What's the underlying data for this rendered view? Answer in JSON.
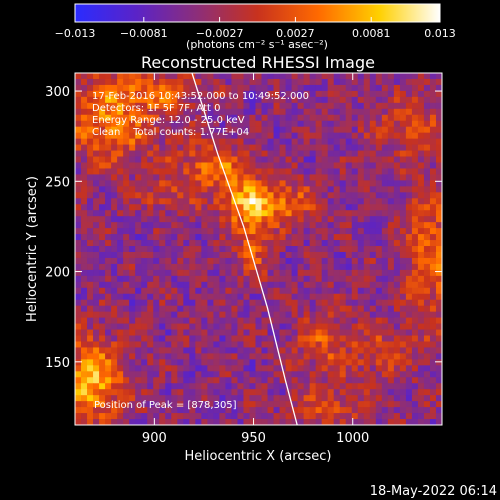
{
  "chart_data": {
    "type": "heatmap",
    "title": "Reconstructed RHESSI Image",
    "xlabel": "Heliocentric X (arcsec)",
    "ylabel": "Heliocentric Y (arcsec)",
    "x_range": [
      860,
      1045
    ],
    "y_range": [
      115,
      310
    ],
    "x_ticks": [
      {
        "value": 900,
        "label": "900"
      },
      {
        "value": 950,
        "label": "950"
      },
      {
        "value": 1000,
        "label": "1000"
      }
    ],
    "y_ticks": [
      {
        "value": 150,
        "label": "150"
      },
      {
        "value": 200,
        "label": "200"
      },
      {
        "value": 250,
        "label": "250"
      },
      {
        "value": 300,
        "label": "300"
      }
    ],
    "colorbar": {
      "range": [
        -0.013,
        0.013
      ],
      "units": "(photons cm⁻² s⁻¹ asec⁻²)",
      "ticks": [
        {
          "value": -0.013,
          "label": "−0.013"
        },
        {
          "value": -0.0081,
          "label": "−0.0081"
        },
        {
          "value": -0.0027,
          "label": "−0.0027"
        },
        {
          "value": 0.0027,
          "label": "0.0027"
        },
        {
          "value": 0.0081,
          "label": "0.0081"
        },
        {
          "value": 0.013,
          "label": "0.013"
        }
      ],
      "colors": [
        "#2a2cff",
        "#5a23c8",
        "#8c2e7a",
        "#c8321e",
        "#ff6a00",
        "#ffd000",
        "#ffffff"
      ]
    },
    "annotations": [
      "17-Feb-2016 10:43:52.000 to 10:49:52.000",
      "Detectors: 1F 5F 7F, Att 0",
      "Energy Range: 12.0 - 25.0 keV",
      "Clean    Total counts: 1.77E+04"
    ],
    "peak_label": "Position of Peak = [878,305]",
    "limb_curve": [
      [
        919,
        310
      ],
      [
        932,
        265
      ],
      [
        945,
        225
      ],
      [
        957,
        180
      ],
      [
        966,
        140
      ],
      [
        972,
        115
      ]
    ],
    "intensity_sources": [
      {
        "x": 950,
        "y": 238,
        "sx": 12,
        "sy": 9,
        "amp": 0.012
      },
      {
        "x": 930,
        "y": 258,
        "sx": 14,
        "sy": 9,
        "amp": 0.008
      },
      {
        "x": 950,
        "y": 215,
        "sx": 6,
        "sy": 12,
        "amp": 0.007
      },
      {
        "x": 905,
        "y": 242,
        "sx": 9,
        "sy": 6,
        "amp": 0.005
      },
      {
        "x": 972,
        "y": 238,
        "sx": 8,
        "sy": 8,
        "amp": 0.005
      },
      {
        "x": 878,
        "y": 285,
        "sx": 18,
        "sy": 18,
        "amp": 0.009
      },
      {
        "x": 868,
        "y": 140,
        "sx": 12,
        "sy": 16,
        "amp": 0.012
      },
      {
        "x": 1040,
        "y": 210,
        "sx": 10,
        "sy": 28,
        "amp": 0.008
      },
      {
        "x": 985,
        "y": 160,
        "sx": 10,
        "sy": 12,
        "amp": 0.006
      },
      {
        "x": 1015,
        "y": 155,
        "sx": 12,
        "sy": 10,
        "amp": 0.005
      },
      {
        "x": 1030,
        "y": 280,
        "sx": 15,
        "sy": 12,
        "amp": 0.005
      },
      {
        "x": 990,
        "y": 125,
        "sx": 15,
        "sy": 8,
        "amp": 0.005
      },
      {
        "x": 905,
        "y": 300,
        "sx": 15,
        "sy": 6,
        "amp": 0.006
      }
    ]
  },
  "footer": {
    "date": "18-May-2022 06:14"
  }
}
